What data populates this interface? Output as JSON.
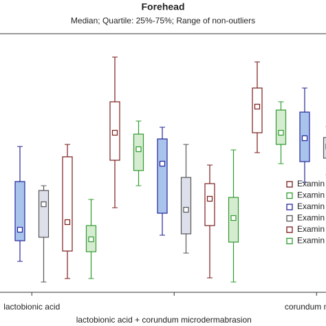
{
  "chart_data": {
    "type": "box",
    "title": "Forehead",
    "subtitle": "Median; Quartile: 25%-75%; Range of non-outliers",
    "categories": [
      "lactobionic acid",
      "lactobionic acid + corundum microdermabrasion",
      "corundum microd"
    ],
    "ylim": [
      0,
      474
    ],
    "series": [
      {
        "name": "Examin",
        "color": "#7a1a1a",
        "fill": "#ffffff",
        "min": [
          null,
          172,
          252
        ],
        "q1": [
          null,
          241,
          281
        ],
        "median": [
          null,
          281,
          319
        ],
        "q3": [
          null,
          326,
          346
        ],
        "max": [
          null,
          391,
          384
        ]
      },
      {
        "name": "Examin",
        "color": "#2e9a2e",
        "fill": "#d6ecd0",
        "min": [
          null,
          204,
          236
        ],
        "q1": [
          null,
          226,
          264
        ],
        "median": [
          null,
          257,
          281
        ],
        "q3": [
          null,
          279,
          314
        ],
        "max": [
          null,
          298,
          326
        ]
      },
      {
        "name": "Examin",
        "color": "#24249a",
        "fill": "#a8c3ec",
        "min": [
          94,
          132,
          209
        ],
        "q1": [
          124,
          164,
          239
        ],
        "median": [
          140,
          236,
          273
        ],
        "q3": [
          210,
          272,
          311
        ],
        "max": [
          261,
          289,
          346
        ]
      },
      {
        "name": "Examin",
        "color": "#555555",
        "fill": "#dde0ea",
        "min": [
          64,
          106,
          220
        ],
        "q1": [
          129,
          134,
          244
        ],
        "median": [
          177,
          169,
          261
        ],
        "q3": [
          197,
          216,
          274
        ],
        "max": [
          204,
          264,
          290
        ]
      },
      {
        "name": "Examin",
        "color": "#7a1a1a",
        "fill": "#ffffff",
        "min": [
          69,
          70,
          null
        ],
        "q1": [
          109,
          146,
          null
        ],
        "median": [
          151,
          185,
          null
        ],
        "q3": [
          246,
          207,
          null
        ],
        "max": [
          264,
          234,
          null
        ]
      },
      {
        "name": "Examin",
        "color": "#2e9a2e",
        "fill": "#d6ecd0",
        "min": [
          69,
          64,
          null
        ],
        "q1": [
          108,
          122,
          null
        ],
        "median": [
          126,
          157,
          null
        ],
        "q3": [
          146,
          187,
          null
        ],
        "max": [
          184,
          256,
          null
        ]
      }
    ]
  }
}
